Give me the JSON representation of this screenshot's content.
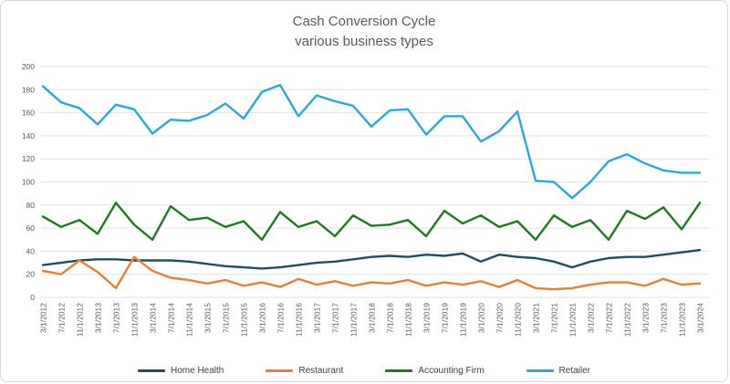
{
  "title": {
    "line1": "Cash Conversion Cycle",
    "line2": "various business types"
  },
  "colors": {
    "title_text": "#595959",
    "axis_text": "#595959",
    "legend_text": "#404040",
    "gridline": "#e2e2e2",
    "card_border": "#d6d6d6"
  },
  "chart_data": {
    "type": "line",
    "title": "Cash Conversion Cycle",
    "subtitle": "various business types",
    "xlabel": "",
    "ylabel": "",
    "ylim": [
      0,
      200
    ],
    "ytick_step": 20,
    "grid": true,
    "legend_position": "bottom",
    "categories": [
      "3/1/2012",
      "7/1/2012",
      "11/1/2012",
      "3/1/2013",
      "7/1/2013",
      "11/1/2013",
      "3/1/2014",
      "7/1/2014",
      "11/1/2014",
      "3/1/2015",
      "7/1/2015",
      "11/1/2015",
      "3/1/2016",
      "7/1/2016",
      "11/1/2016",
      "3/1/2017",
      "7/1/2017",
      "11/1/2017",
      "3/1/2018",
      "7/1/2018",
      "11/1/2018",
      "3/1/2019",
      "7/1/2019",
      "11/1/2019",
      "3/1/2020",
      "7/1/2020",
      "11/1/2020",
      "3/1/2021",
      "7/1/2021",
      "11/1/2021",
      "3/1/2022",
      "7/1/2022",
      "11/1/2022",
      "3/1/2023",
      "7/1/2023",
      "11/1/2023",
      "3/1/2024"
    ],
    "series": [
      {
        "name": "Home Health",
        "color": "#1F4E63",
        "values": [
          28,
          30,
          32,
          33,
          33,
          32,
          32,
          32,
          31,
          29,
          27,
          26,
          25,
          26,
          28,
          30,
          31,
          33,
          35,
          36,
          35,
          37,
          36,
          38,
          31,
          37,
          35,
          34,
          31,
          26,
          31,
          34,
          35,
          35,
          37,
          39,
          41
        ]
      },
      {
        "name": "Restaurant",
        "color": "#ED7D31",
        "values": [
          23,
          20,
          32,
          22,
          8,
          35,
          23,
          17,
          15,
          12,
          15,
          10,
          13,
          9,
          16,
          11,
          14,
          10,
          13,
          12,
          15,
          10,
          13,
          11,
          14,
          9,
          15,
          8,
          7,
          8,
          11,
          13,
          13,
          10,
          16,
          11,
          12
        ]
      },
      {
        "name": "Accounting Firm",
        "color": "#1F7A1E",
        "values": [
          70,
          61,
          67,
          55,
          82,
          63,
          50,
          79,
          67,
          69,
          61,
          66,
          50,
          74,
          61,
          66,
          53,
          71,
          62,
          63,
          67,
          53,
          75,
          64,
          71,
          61,
          66,
          50,
          71,
          61,
          67,
          50,
          75,
          68,
          78,
          59,
          82
        ]
      },
      {
        "name": "Retailer",
        "color": "#29A7DF",
        "values": [
          183,
          169,
          164,
          150,
          167,
          163,
          142,
          154,
          153,
          158,
          168,
          155,
          178,
          184,
          157,
          175,
          170,
          166,
          148,
          162,
          163,
          141,
          157,
          157,
          135,
          144,
          161,
          101,
          100,
          86,
          100,
          118,
          124,
          116,
          110,
          108,
          108
        ]
      }
    ]
  }
}
